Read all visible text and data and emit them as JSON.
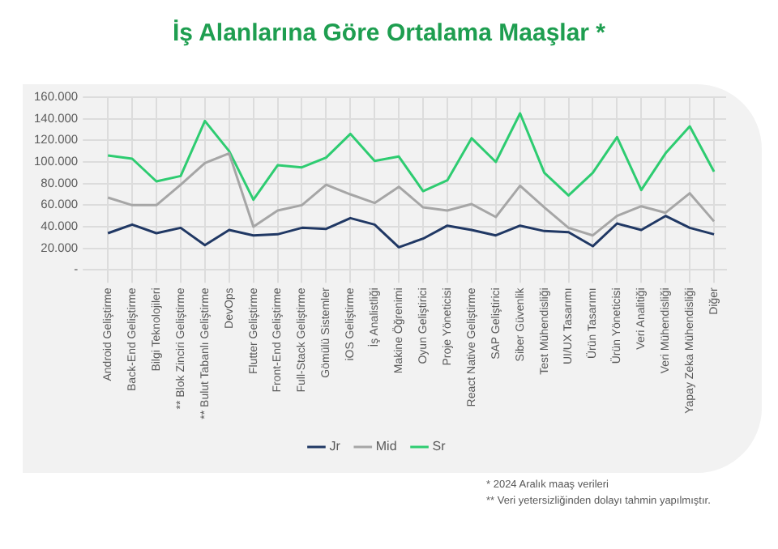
{
  "chart_data": {
    "type": "line",
    "title": "İş Alanlarına Göre Ortalama Maaşlar *",
    "categories": [
      "Android Geliştirme",
      "Back-End Geliştirme",
      "Bilgi Teknolojileri",
      "** Blok Zinciri Geliştirme",
      "** Bulut Tabanlı Geliştirme",
      "DevOps",
      "Flutter Geliştirme",
      "Front-End Geliştirme",
      "Full-Stack Geliştirme",
      "Gömülü Sistemler",
      "iOS Geliştirme",
      "İş Analistliği",
      "Makine Öğrenimi",
      "Oyun Geliştirici",
      "Proje Yöneticisi",
      "React Native Geliştirme",
      "SAP Geliştirici",
      "Siber Güvenlik",
      "Test Mühendisliği",
      "UI/UX Tasarımı",
      "Ürün Tasarımı",
      "Ürün Yöneticisi",
      "Veri Analitiği",
      "Veri Mühendisliği",
      "Yapay Zeka Mühendisliği",
      "Diğer"
    ],
    "series": [
      {
        "name": "Jr",
        "color": "#203864",
        "values": [
          34000,
          42000,
          34000,
          39000,
          23000,
          37000,
          32000,
          33000,
          39000,
          38000,
          48000,
          42000,
          21000,
          29000,
          41000,
          37000,
          32000,
          41000,
          36000,
          35000,
          22000,
          43000,
          37000,
          50000,
          39000,
          33000
        ]
      },
      {
        "name": "Mid",
        "color": "#a6a6a6",
        "values": [
          67000,
          60000,
          60000,
          79000,
          99000,
          108000,
          40000,
          55000,
          60000,
          79000,
          70000,
          62000,
          77000,
          58000,
          55000,
          61000,
          49000,
          78000,
          58000,
          39000,
          32000,
          50000,
          59000,
          53000,
          71000,
          45000
        ]
      },
      {
        "name": "Sr",
        "color": "#2ecc71",
        "values": [
          106000,
          103000,
          82000,
          87000,
          138000,
          110000,
          65000,
          97000,
          95000,
          104000,
          126000,
          101000,
          105000,
          73000,
          83000,
          122000,
          100000,
          145000,
          90000,
          69000,
          90000,
          123000,
          74000,
          108000,
          133000,
          91000
        ]
      }
    ],
    "ylim": [
      0,
      160000
    ],
    "yticks": [
      {
        "value": 0,
        "label": "-"
      },
      {
        "value": 20000,
        "label": "20.000"
      },
      {
        "value": 40000,
        "label": "40.000"
      },
      {
        "value": 60000,
        "label": "60.000"
      },
      {
        "value": 80000,
        "label": "80.000"
      },
      {
        "value": 100000,
        "label": "100.000"
      },
      {
        "value": 120000,
        "label": "120.000"
      },
      {
        "value": 140000,
        "label": "140.000"
      },
      {
        "value": 160000,
        "label": "160.000"
      }
    ],
    "grid": true,
    "legend": "bottom",
    "marker": "none",
    "line_style": "solid",
    "annotations": [
      "* 2024 Aralık maaş verileri",
      "** Veri yetersizliğinden dolayı tahmin yapılmıştır."
    ]
  }
}
